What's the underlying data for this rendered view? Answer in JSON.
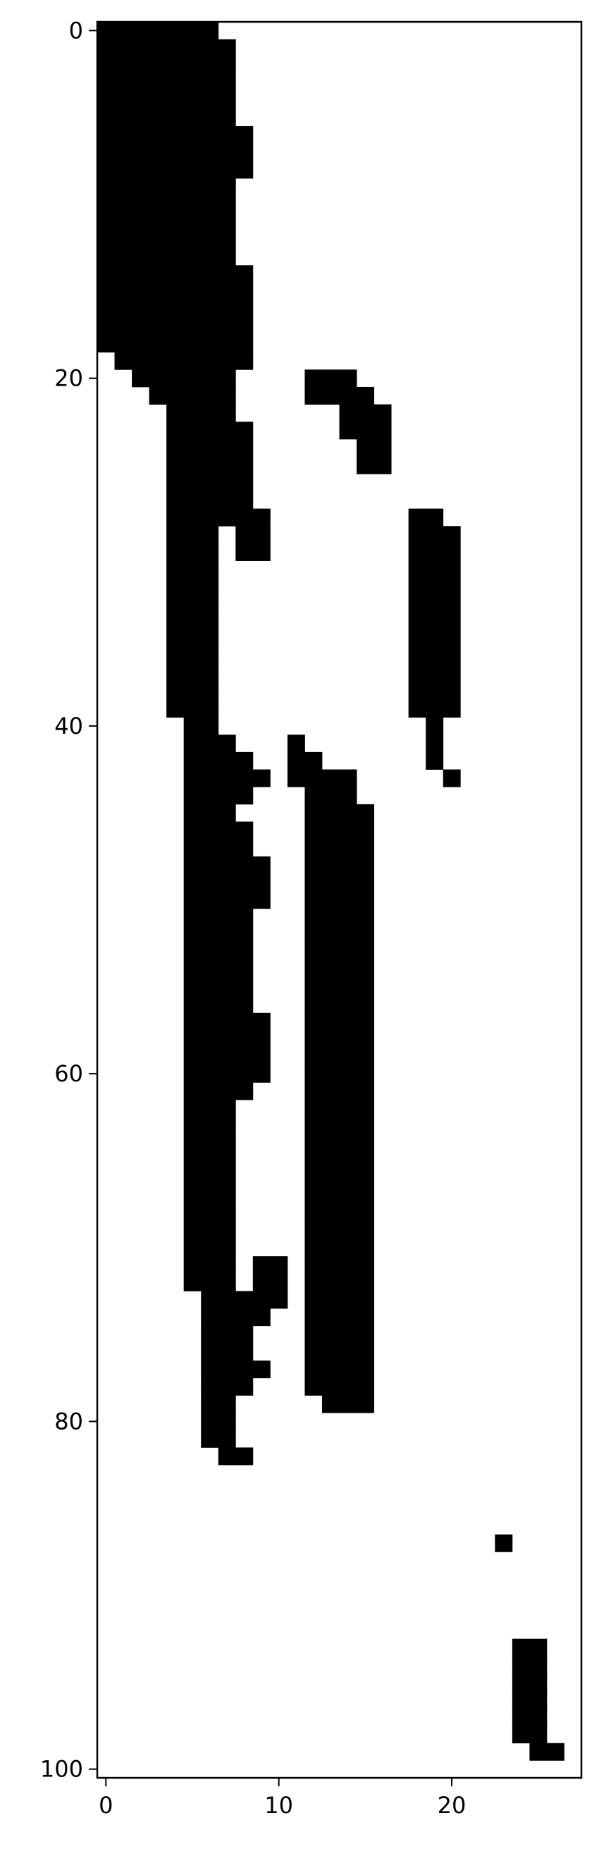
{
  "chart_data": {
    "type": "heatmap",
    "title": "",
    "xlabel": "",
    "ylabel": "",
    "colormap": "binary",
    "colors": {
      "filled": "#000000",
      "empty": "#ffffff",
      "frame": "#000000"
    },
    "xlim": [
      -0.5,
      27.5
    ],
    "ylim": [
      100.5,
      -0.5
    ],
    "x_ticks": [
      0,
      10,
      20
    ],
    "x_tick_labels": [
      "0",
      "10",
      "20"
    ],
    "y_ticks": [
      0,
      20,
      40,
      60,
      80,
      100
    ],
    "y_tick_labels": [
      "0",
      "20",
      "40",
      "60",
      "80",
      "100"
    ],
    "grid": false,
    "legend": "none",
    "filled_cells_by_row": {
      "0": [
        [
          0,
          6
        ]
      ],
      "1": [
        [
          0,
          7
        ]
      ],
      "2": [
        [
          0,
          7
        ]
      ],
      "3": [
        [
          0,
          7
        ]
      ],
      "4": [
        [
          0,
          7
        ]
      ],
      "5": [
        [
          0,
          7
        ]
      ],
      "6": [
        [
          0,
          8
        ]
      ],
      "7": [
        [
          0,
          8
        ]
      ],
      "8": [
        [
          0,
          8
        ]
      ],
      "9": [
        [
          0,
          7
        ]
      ],
      "10": [
        [
          0,
          7
        ]
      ],
      "11": [
        [
          0,
          7
        ]
      ],
      "12": [
        [
          0,
          7
        ]
      ],
      "13": [
        [
          0,
          7
        ]
      ],
      "14": [
        [
          0,
          8
        ]
      ],
      "15": [
        [
          0,
          8
        ]
      ],
      "16": [
        [
          0,
          8
        ]
      ],
      "17": [
        [
          0,
          8
        ]
      ],
      "18": [
        [
          0,
          8
        ]
      ],
      "19": [
        [
          1,
          8
        ]
      ],
      "20": [
        [
          2,
          3
        ],
        [
          4,
          7
        ],
        [
          12,
          14
        ]
      ],
      "21": [
        [
          3,
          3
        ],
        [
          4,
          7
        ],
        [
          12,
          15
        ]
      ],
      "22": [
        [
          4,
          7
        ],
        [
          14,
          16
        ]
      ],
      "23": [
        [
          4,
          8
        ],
        [
          14,
          16
        ]
      ],
      "24": [
        [
          4,
          8
        ],
        [
          15,
          16
        ]
      ],
      "25": [
        [
          4,
          8
        ],
        [
          15,
          16
        ]
      ],
      "26": [
        [
          4,
          8
        ]
      ],
      "27": [
        [
          4,
          8
        ]
      ],
      "28": [
        [
          4,
          9
        ],
        [
          18,
          19
        ]
      ],
      "29": [
        [
          4,
          6
        ],
        [
          8,
          9
        ],
        [
          18,
          20
        ]
      ],
      "30": [
        [
          4,
          6
        ],
        [
          8,
          9
        ],
        [
          18,
          20
        ]
      ],
      "31": [
        [
          4,
          6
        ],
        [
          18,
          20
        ]
      ],
      "32": [
        [
          4,
          6
        ],
        [
          18,
          20
        ]
      ],
      "33": [
        [
          4,
          6
        ],
        [
          18,
          20
        ]
      ],
      "34": [
        [
          4,
          6
        ],
        [
          18,
          20
        ]
      ],
      "35": [
        [
          4,
          6
        ],
        [
          18,
          20
        ]
      ],
      "36": [
        [
          4,
          6
        ],
        [
          18,
          20
        ]
      ],
      "37": [
        [
          4,
          6
        ],
        [
          18,
          20
        ]
      ],
      "38": [
        [
          4,
          6
        ],
        [
          18,
          20
        ]
      ],
      "39": [
        [
          4,
          6
        ],
        [
          18,
          20
        ]
      ],
      "40": [
        [
          5,
          6
        ],
        [
          19,
          19
        ]
      ],
      "41": [
        [
          5,
          7
        ],
        [
          11,
          11
        ],
        [
          19,
          19
        ]
      ],
      "42": [
        [
          5,
          8
        ],
        [
          11,
          12
        ],
        [
          19,
          19
        ]
      ],
      "43": [
        [
          5,
          9
        ],
        [
          11,
          14
        ],
        [
          20,
          20
        ]
      ],
      "44": [
        [
          5,
          8
        ],
        [
          12,
          14
        ]
      ],
      "45": [
        [
          5,
          7
        ],
        [
          12,
          15
        ]
      ],
      "46": [
        [
          5,
          8
        ],
        [
          12,
          15
        ]
      ],
      "47": [
        [
          5,
          8
        ],
        [
          12,
          15
        ]
      ],
      "48": [
        [
          5,
          9
        ],
        [
          12,
          15
        ]
      ],
      "49": [
        [
          5,
          9
        ],
        [
          12,
          15
        ]
      ],
      "50": [
        [
          5,
          9
        ],
        [
          12,
          15
        ]
      ],
      "51": [
        [
          5,
          8
        ],
        [
          12,
          15
        ]
      ],
      "52": [
        [
          5,
          8
        ],
        [
          12,
          15
        ]
      ],
      "53": [
        [
          5,
          8
        ],
        [
          12,
          15
        ]
      ],
      "54": [
        [
          5,
          8
        ],
        [
          12,
          15
        ]
      ],
      "55": [
        [
          5,
          8
        ],
        [
          12,
          15
        ]
      ],
      "56": [
        [
          5,
          8
        ],
        [
          12,
          15
        ]
      ],
      "57": [
        [
          5,
          9
        ],
        [
          12,
          15
        ]
      ],
      "58": [
        [
          5,
          9
        ],
        [
          12,
          15
        ]
      ],
      "59": [
        [
          5,
          9
        ],
        [
          12,
          15
        ]
      ],
      "60": [
        [
          5,
          9
        ],
        [
          12,
          15
        ]
      ],
      "61": [
        [
          5,
          8
        ],
        [
          12,
          15
        ]
      ],
      "62": [
        [
          5,
          7
        ],
        [
          12,
          15
        ]
      ],
      "63": [
        [
          5,
          7
        ],
        [
          12,
          15
        ]
      ],
      "64": [
        [
          5,
          7
        ],
        [
          12,
          15
        ]
      ],
      "65": [
        [
          5,
          7
        ],
        [
          12,
          15
        ]
      ],
      "66": [
        [
          5,
          7
        ],
        [
          12,
          15
        ]
      ],
      "67": [
        [
          5,
          7
        ],
        [
          12,
          15
        ]
      ],
      "68": [
        [
          5,
          7
        ],
        [
          12,
          15
        ]
      ],
      "69": [
        [
          5,
          7
        ],
        [
          12,
          15
        ]
      ],
      "70": [
        [
          5,
          7
        ],
        [
          12,
          15
        ]
      ],
      "71": [
        [
          5,
          7
        ],
        [
          9,
          10
        ],
        [
          12,
          15
        ]
      ],
      "72": [
        [
          5,
          7
        ],
        [
          9,
          10
        ],
        [
          12,
          15
        ]
      ],
      "73": [
        [
          6,
          10
        ],
        [
          12,
          15
        ]
      ],
      "74": [
        [
          6,
          9
        ],
        [
          12,
          15
        ]
      ],
      "75": [
        [
          6,
          8
        ],
        [
          12,
          15
        ]
      ],
      "76": [
        [
          6,
          8
        ],
        [
          12,
          15
        ]
      ],
      "77": [
        [
          6,
          9
        ],
        [
          12,
          15
        ]
      ],
      "78": [
        [
          6,
          8
        ],
        [
          12,
          15
        ]
      ],
      "79": [
        [
          6,
          7
        ],
        [
          13,
          15
        ]
      ],
      "80": [
        [
          6,
          7
        ]
      ],
      "81": [
        [
          6,
          7
        ]
      ],
      "82": [
        [
          7,
          8
        ]
      ],
      "87": [
        [
          23,
          23
        ]
      ],
      "93": [
        [
          24,
          25
        ]
      ],
      "94": [
        [
          24,
          25
        ]
      ],
      "95": [
        [
          24,
          25
        ]
      ],
      "96": [
        [
          24,
          25
        ]
      ],
      "97": [
        [
          24,
          25
        ]
      ],
      "98": [
        [
          24,
          25
        ]
      ],
      "99": [
        [
          25,
          26
        ]
      ]
    }
  }
}
